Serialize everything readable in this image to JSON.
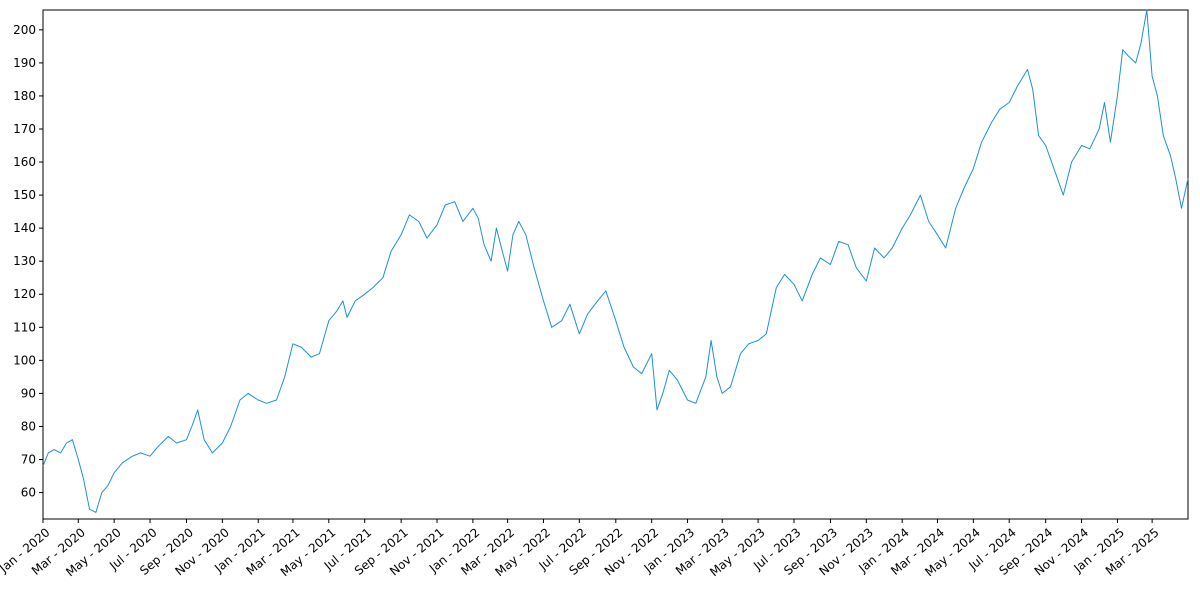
{
  "chart_data": {
    "type": "line",
    "title": "",
    "xlabel": "",
    "ylabel": "",
    "x_range": [
      "2020-01-01",
      "2025-05-01"
    ],
    "ylim": [
      52,
      206
    ],
    "y_ticks": [
      60,
      70,
      80,
      90,
      100,
      110,
      120,
      130,
      140,
      150,
      160,
      170,
      180,
      190,
      200
    ],
    "x_ticks": [
      {
        "date": "2020-01-01",
        "label": "Jan - 2020"
      },
      {
        "date": "2020-03-01",
        "label": "Mar - 2020"
      },
      {
        "date": "2020-05-01",
        "label": "May - 2020"
      },
      {
        "date": "2020-07-01",
        "label": "Jul - 2020"
      },
      {
        "date": "2020-09-01",
        "label": "Sep - 2020"
      },
      {
        "date": "2020-11-01",
        "label": "Nov - 2020"
      },
      {
        "date": "2021-01-01",
        "label": "Jan - 2021"
      },
      {
        "date": "2021-03-01",
        "label": "Mar - 2021"
      },
      {
        "date": "2021-05-01",
        "label": "May - 2021"
      },
      {
        "date": "2021-07-01",
        "label": "Jul - 2021"
      },
      {
        "date": "2021-09-01",
        "label": "Sep - 2021"
      },
      {
        "date": "2021-11-01",
        "label": "Nov - 2021"
      },
      {
        "date": "2022-01-01",
        "label": "Jan - 2022"
      },
      {
        "date": "2022-03-01",
        "label": "Mar - 2022"
      },
      {
        "date": "2022-05-01",
        "label": "May - 2022"
      },
      {
        "date": "2022-07-01",
        "label": "Jul - 2022"
      },
      {
        "date": "2022-09-01",
        "label": "Sep - 2022"
      },
      {
        "date": "2022-11-01",
        "label": "Nov - 2022"
      },
      {
        "date": "2023-01-01",
        "label": "Jan - 2023"
      },
      {
        "date": "2023-03-01",
        "label": "Mar - 2023"
      },
      {
        "date": "2023-05-01",
        "label": "May - 2023"
      },
      {
        "date": "2023-07-01",
        "label": "Jul - 2023"
      },
      {
        "date": "2023-09-01",
        "label": "Sep - 2023"
      },
      {
        "date": "2023-11-01",
        "label": "Nov - 2023"
      },
      {
        "date": "2024-01-01",
        "label": "Jan - 2024"
      },
      {
        "date": "2024-03-01",
        "label": "Mar - 2024"
      },
      {
        "date": "2024-05-01",
        "label": "May - 2024"
      },
      {
        "date": "2024-07-01",
        "label": "Jul - 2024"
      },
      {
        "date": "2024-09-01",
        "label": "Sep - 2024"
      },
      {
        "date": "2024-11-01",
        "label": "Nov - 2024"
      },
      {
        "date": "2025-01-01",
        "label": "Jan - 2025"
      },
      {
        "date": "2025-03-01",
        "label": "Mar - 2025"
      }
    ],
    "grid": false,
    "series": [
      {
        "color": "#1f8fd6",
        "points": [
          [
            "2020-01-01",
            68
          ],
          [
            "2020-01-10",
            72
          ],
          [
            "2020-01-20",
            73
          ],
          [
            "2020-01-31",
            72
          ],
          [
            "2020-02-10",
            75
          ],
          [
            "2020-02-20",
            76
          ],
          [
            "2020-03-01",
            70
          ],
          [
            "2020-03-10",
            64
          ],
          [
            "2020-03-20",
            55
          ],
          [
            "2020-03-31",
            54
          ],
          [
            "2020-04-10",
            60
          ],
          [
            "2020-04-20",
            62
          ],
          [
            "2020-05-01",
            66
          ],
          [
            "2020-05-15",
            69
          ],
          [
            "2020-06-01",
            71
          ],
          [
            "2020-06-15",
            72
          ],
          [
            "2020-07-01",
            71
          ],
          [
            "2020-07-15",
            74
          ],
          [
            "2020-08-01",
            77
          ],
          [
            "2020-08-15",
            75
          ],
          [
            "2020-09-01",
            76
          ],
          [
            "2020-09-10",
            80
          ],
          [
            "2020-09-20",
            85
          ],
          [
            "2020-10-01",
            76
          ],
          [
            "2020-10-15",
            72
          ],
          [
            "2020-11-01",
            75
          ],
          [
            "2020-11-15",
            80
          ],
          [
            "2020-12-01",
            88
          ],
          [
            "2020-12-15",
            90
          ],
          [
            "2021-01-01",
            88
          ],
          [
            "2021-01-15",
            87
          ],
          [
            "2021-02-01",
            88
          ],
          [
            "2021-02-15",
            95
          ],
          [
            "2021-03-01",
            105
          ],
          [
            "2021-03-15",
            104
          ],
          [
            "2021-04-01",
            101
          ],
          [
            "2021-04-15",
            102
          ],
          [
            "2021-05-01",
            112
          ],
          [
            "2021-05-15",
            115
          ],
          [
            "2021-05-25",
            118
          ],
          [
            "2021-06-01",
            113
          ],
          [
            "2021-06-15",
            118
          ],
          [
            "2021-07-01",
            120
          ],
          [
            "2021-07-15",
            122
          ],
          [
            "2021-08-01",
            125
          ],
          [
            "2021-08-15",
            133
          ],
          [
            "2021-09-01",
            138
          ],
          [
            "2021-09-15",
            144
          ],
          [
            "2021-10-01",
            142
          ],
          [
            "2021-10-15",
            137
          ],
          [
            "2021-11-01",
            141
          ],
          [
            "2021-11-15",
            147
          ],
          [
            "2021-12-01",
            148
          ],
          [
            "2021-12-15",
            142
          ],
          [
            "2022-01-01",
            146
          ],
          [
            "2022-01-10",
            143
          ],
          [
            "2022-01-20",
            135
          ],
          [
            "2022-02-01",
            130
          ],
          [
            "2022-02-10",
            140
          ],
          [
            "2022-02-20",
            133
          ],
          [
            "2022-03-01",
            127
          ],
          [
            "2022-03-10",
            138
          ],
          [
            "2022-03-20",
            142
          ],
          [
            "2022-04-01",
            138
          ],
          [
            "2022-04-15",
            128
          ],
          [
            "2022-05-01",
            118
          ],
          [
            "2022-05-15",
            110
          ],
          [
            "2022-06-01",
            112
          ],
          [
            "2022-06-15",
            117
          ],
          [
            "2022-07-01",
            108
          ],
          [
            "2022-07-15",
            114
          ],
          [
            "2022-08-01",
            118
          ],
          [
            "2022-08-15",
            121
          ],
          [
            "2022-09-01",
            112
          ],
          [
            "2022-09-15",
            104
          ],
          [
            "2022-10-01",
            98
          ],
          [
            "2022-10-15",
            96
          ],
          [
            "2022-11-01",
            102
          ],
          [
            "2022-11-10",
            85
          ],
          [
            "2022-11-20",
            90
          ],
          [
            "2022-12-01",
            97
          ],
          [
            "2022-12-15",
            94
          ],
          [
            "2023-01-01",
            88
          ],
          [
            "2023-01-15",
            87
          ],
          [
            "2023-02-01",
            95
          ],
          [
            "2023-02-10",
            106
          ],
          [
            "2023-02-20",
            95
          ],
          [
            "2023-03-01",
            90
          ],
          [
            "2023-03-15",
            92
          ],
          [
            "2023-04-01",
            102
          ],
          [
            "2023-04-15",
            105
          ],
          [
            "2023-05-01",
            106
          ],
          [
            "2023-05-15",
            108
          ],
          [
            "2023-06-01",
            122
          ],
          [
            "2023-06-15",
            126
          ],
          [
            "2023-07-01",
            123
          ],
          [
            "2023-07-15",
            118
          ],
          [
            "2023-08-01",
            126
          ],
          [
            "2023-08-15",
            131
          ],
          [
            "2023-09-01",
            129
          ],
          [
            "2023-09-15",
            136
          ],
          [
            "2023-10-01",
            135
          ],
          [
            "2023-10-15",
            128
          ],
          [
            "2023-11-01",
            124
          ],
          [
            "2023-11-15",
            134
          ],
          [
            "2023-12-01",
            131
          ],
          [
            "2023-12-15",
            134
          ],
          [
            "2024-01-01",
            140
          ],
          [
            "2024-01-15",
            144
          ],
          [
            "2024-02-01",
            150
          ],
          [
            "2024-02-15",
            142
          ],
          [
            "2024-03-01",
            138
          ],
          [
            "2024-03-15",
            134
          ],
          [
            "2024-04-01",
            146
          ],
          [
            "2024-04-15",
            152
          ],
          [
            "2024-05-01",
            158
          ],
          [
            "2024-05-15",
            166
          ],
          [
            "2024-06-01",
            172
          ],
          [
            "2024-06-15",
            176
          ],
          [
            "2024-07-01",
            178
          ],
          [
            "2024-07-15",
            183
          ],
          [
            "2024-08-01",
            188
          ],
          [
            "2024-08-10",
            182
          ],
          [
            "2024-08-20",
            168
          ],
          [
            "2024-09-01",
            165
          ],
          [
            "2024-09-15",
            158
          ],
          [
            "2024-10-01",
            150
          ],
          [
            "2024-10-15",
            160
          ],
          [
            "2024-11-01",
            165
          ],
          [
            "2024-11-15",
            164
          ],
          [
            "2024-12-01",
            170
          ],
          [
            "2024-12-10",
            178
          ],
          [
            "2024-12-20",
            166
          ],
          [
            "2025-01-01",
            180
          ],
          [
            "2025-01-10",
            194
          ],
          [
            "2025-01-20",
            192
          ],
          [
            "2025-02-01",
            190
          ],
          [
            "2025-02-10",
            196
          ],
          [
            "2025-02-20",
            206
          ],
          [
            "2025-03-01",
            186
          ],
          [
            "2025-03-10",
            180
          ],
          [
            "2025-03-20",
            168
          ],
          [
            "2025-04-01",
            162
          ],
          [
            "2025-04-10",
            155
          ],
          [
            "2025-04-20",
            146
          ],
          [
            "2025-05-01",
            155
          ]
        ]
      }
    ]
  }
}
